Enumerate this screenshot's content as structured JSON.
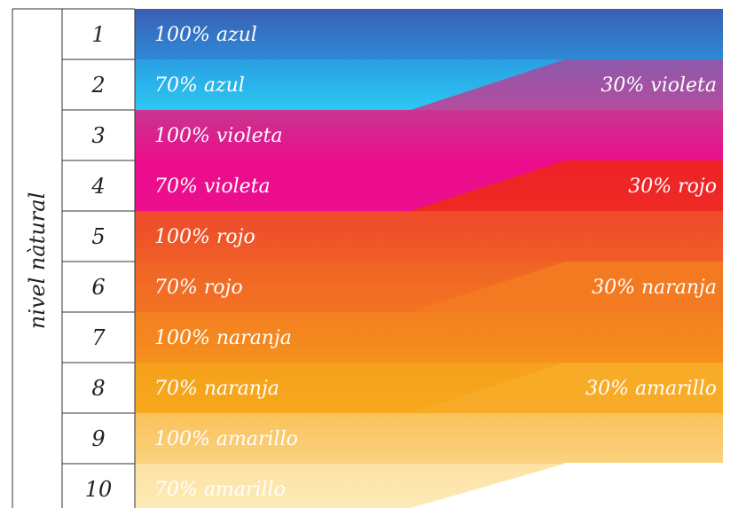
{
  "side_label": "nivel nàtural",
  "rows": [
    {
      "number": "1",
      "left": "100% azul",
      "right": ""
    },
    {
      "number": "2",
      "left": "70% azul",
      "right": "30% violeta"
    },
    {
      "number": "3",
      "left": "100% violeta",
      "right": ""
    },
    {
      "number": "4",
      "left": "70% violeta",
      "right": "30% rojo"
    },
    {
      "number": "5",
      "left": "100% rojo",
      "right": ""
    },
    {
      "number": "6",
      "left": "70% rojo",
      "right": "30% naranja"
    },
    {
      "number": "7",
      "left": "100% naranja",
      "right": ""
    },
    {
      "number": "8",
      "left": "70% naranja",
      "right": "30% amarillo"
    },
    {
      "number": "9",
      "left": "100% amarillo",
      "right": ""
    },
    {
      "number": "10",
      "left": "70% amarillo",
      "right": ""
    }
  ],
  "colors": {
    "azul_top": "#3a62b4",
    "azul_light": "#2dc3f0",
    "violeta_top": "#9d58a8",
    "violeta": "#e8168c",
    "rojo": "#ee2d24",
    "naranja_dark": "#ef5a28",
    "naranja": "#f47b20",
    "amarillo": "#f7a21b",
    "amarillo_light": "#fde6a0"
  }
}
